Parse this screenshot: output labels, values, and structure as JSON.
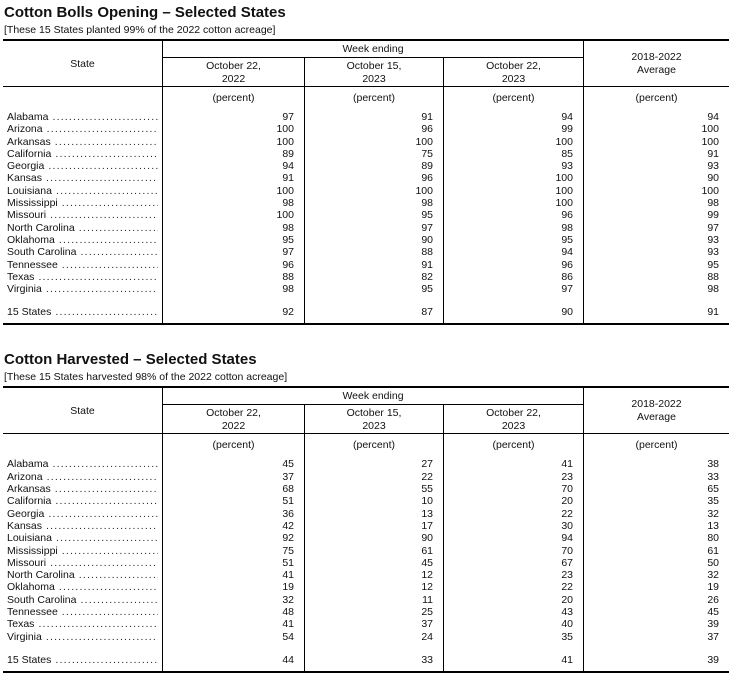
{
  "tables": [
    {
      "title": "Cotton Bolls Opening – Selected States",
      "subtitle": "[These 15 States planted 99% of the 2022 cotton acreage]",
      "header": {
        "state": "State",
        "week_ending": "Week ending",
        "weeks": [
          "October 22,\n2022",
          "October 15,\n2023",
          "October 22,\n2023"
        ],
        "average": "2018-2022\nAverage",
        "unit": "(percent)"
      },
      "rows": [
        {
          "state": "Alabama",
          "values": [
            97,
            91,
            94,
            94
          ]
        },
        {
          "state": "Arizona",
          "values": [
            100,
            96,
            99,
            100
          ]
        },
        {
          "state": "Arkansas",
          "values": [
            100,
            100,
            100,
            100
          ]
        },
        {
          "state": "California",
          "values": [
            89,
            75,
            85,
            91
          ]
        },
        {
          "state": "Georgia",
          "values": [
            94,
            89,
            93,
            93
          ]
        },
        {
          "state": "Kansas",
          "values": [
            91,
            96,
            100,
            90
          ]
        },
        {
          "state": "Louisiana",
          "values": [
            100,
            100,
            100,
            100
          ]
        },
        {
          "state": "Mississippi",
          "values": [
            98,
            98,
            100,
            98
          ]
        },
        {
          "state": "Missouri",
          "values": [
            100,
            95,
            96,
            99
          ]
        },
        {
          "state": "North Carolina",
          "values": [
            98,
            97,
            98,
            97
          ]
        },
        {
          "state": "Oklahoma",
          "values": [
            95,
            90,
            95,
            93
          ]
        },
        {
          "state": "South Carolina",
          "values": [
            97,
            88,
            94,
            93
          ]
        },
        {
          "state": "Tennessee",
          "values": [
            96,
            91,
            96,
            95
          ]
        },
        {
          "state": "Texas",
          "values": [
            88,
            82,
            86,
            88
          ]
        },
        {
          "state": "Virginia",
          "values": [
            98,
            95,
            97,
            98
          ]
        }
      ],
      "totals": [
        {
          "state": "15 States",
          "values": [
            92,
            87,
            90,
            91
          ]
        }
      ]
    },
    {
      "title": "Cotton Harvested – Selected States",
      "subtitle": "[These 15 States harvested 98% of the 2022 cotton acreage]",
      "header": {
        "state": "State",
        "week_ending": "Week ending",
        "weeks": [
          "October 22,\n2022",
          "October 15,\n2023",
          "October 22,\n2023"
        ],
        "average": "2018-2022\nAverage",
        "unit": "(percent)"
      },
      "rows": [
        {
          "state": "Alabama",
          "values": [
            45,
            27,
            41,
            38
          ]
        },
        {
          "state": "Arizona",
          "values": [
            37,
            22,
            23,
            33
          ]
        },
        {
          "state": "Arkansas",
          "values": [
            68,
            55,
            70,
            65
          ]
        },
        {
          "state": "California",
          "values": [
            51,
            10,
            20,
            35
          ]
        },
        {
          "state": "Georgia",
          "values": [
            36,
            13,
            22,
            32
          ]
        },
        {
          "state": "Kansas",
          "values": [
            42,
            17,
            30,
            13
          ]
        },
        {
          "state": "Louisiana",
          "values": [
            92,
            90,
            94,
            80
          ]
        },
        {
          "state": "Mississippi",
          "values": [
            75,
            61,
            70,
            61
          ]
        },
        {
          "state": "Missouri",
          "values": [
            51,
            45,
            67,
            50
          ]
        },
        {
          "state": "North Carolina",
          "values": [
            41,
            12,
            23,
            32
          ]
        },
        {
          "state": "Oklahoma",
          "values": [
            19,
            12,
            22,
            19
          ]
        },
        {
          "state": "South Carolina",
          "values": [
            32,
            11,
            20,
            26
          ]
        },
        {
          "state": "Tennessee",
          "values": [
            48,
            25,
            43,
            45
          ]
        },
        {
          "state": "Texas",
          "values": [
            41,
            37,
            40,
            39
          ]
        },
        {
          "state": "Virginia",
          "values": [
            54,
            24,
            35,
            37
          ]
        }
      ],
      "totals": [
        {
          "state": "15 States",
          "values": [
            44,
            33,
            41,
            39
          ]
        }
      ]
    }
  ],
  "colors": {
    "text": "#111111",
    "border": "#000000",
    "background": "#ffffff"
  }
}
